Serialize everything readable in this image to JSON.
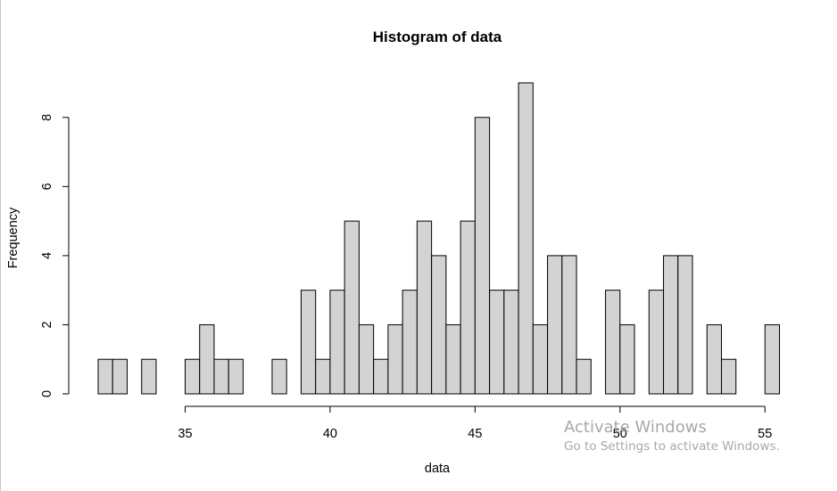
{
  "chart_data": {
    "type": "bar",
    "title": "Histogram of data",
    "xlabel": "data",
    "ylabel": "Frequency",
    "bin_width": 0.5,
    "x_bin_starts": [
      32,
      32.5,
      33,
      33.5,
      34,
      34.5,
      35,
      35.5,
      36,
      36.5,
      37,
      37.5,
      38,
      38.5,
      39,
      39.5,
      40,
      40.5,
      41,
      41.5,
      42,
      42.5,
      43,
      43.5,
      44,
      44.5,
      45,
      45.5,
      46,
      46.5,
      47,
      47.5,
      48,
      48.5,
      49,
      49.5,
      50,
      50.5,
      51,
      51.5,
      52,
      52.5,
      53,
      53.5,
      54,
      54.5,
      55
    ],
    "values": [
      1,
      1,
      0,
      1,
      0,
      0,
      1,
      2,
      1,
      1,
      0,
      0,
      1,
      0,
      3,
      1,
      3,
      5,
      2,
      1,
      2,
      3,
      5,
      4,
      2,
      5,
      8,
      3,
      3,
      9,
      2,
      4,
      4,
      1,
      0,
      3,
      2,
      0,
      3,
      4,
      4,
      0,
      2,
      1,
      0,
      0,
      2
    ],
    "xlim": [
      32,
      55.5
    ],
    "ylim": [
      0,
      9
    ],
    "x_ticks": [
      35,
      40,
      45,
      50,
      55
    ],
    "y_ticks": [
      0,
      2,
      4,
      6,
      8
    ],
    "x_tick_labels": [
      "35",
      "40",
      "45",
      "50",
      "55"
    ],
    "y_tick_labels": [
      "0",
      "2",
      "4",
      "6",
      "8"
    ],
    "bar_fill": "#d3d3d3",
    "bar_stroke": "#000000",
    "grid": false,
    "legend": "none"
  },
  "watermark": {
    "title": "Activate Windows",
    "subtitle": "Go to Settings to activate Windows."
  }
}
